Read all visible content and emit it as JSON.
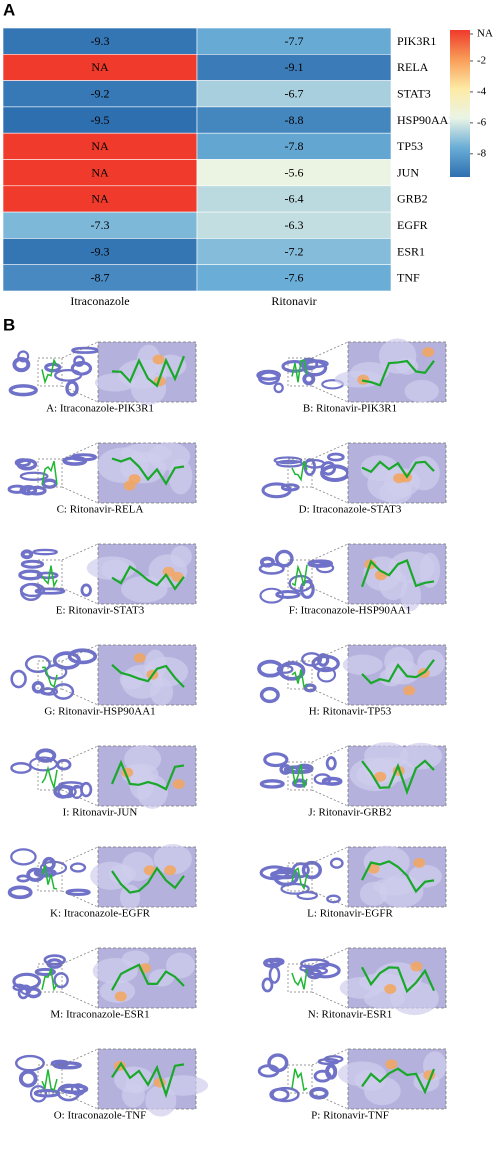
{
  "panel_a_label": "A",
  "chart_data": {
    "type": "heatmap",
    "categories": [
      "PIK3R1",
      "RELA",
      "STAT3",
      "HSP90AA1",
      "TP53",
      "JUN",
      "GRB2",
      "EGFR",
      "ESR1",
      "TNF"
    ],
    "series": [
      {
        "name": "Itraconazole",
        "values": [
          -9.3,
          null,
          -9.2,
          -9.5,
          null,
          null,
          null,
          -7.3,
          -9.3,
          -8.7
        ],
        "value_labels": [
          "-9.3",
          "NA",
          "-9.2",
          "-9.5",
          "NA",
          "NA",
          "NA",
          "-7.3",
          "-9.3",
          "-8.7"
        ]
      },
      {
        "name": "Ritonavir",
        "values": [
          -7.7,
          -9.1,
          -6.7,
          -8.8,
          -7.8,
          -5.6,
          -6.4,
          -6.3,
          -7.2,
          -7.6
        ]
      }
    ],
    "zlim": [
      -9.5,
      0
    ],
    "zticks": [
      {
        "value": 0,
        "label": "NA"
      },
      -2,
      -4,
      -6,
      -8
    ],
    "colormap": [
      "#2e6fb0",
      "#6aadd6",
      "#eaf4e6",
      "#fdeba6",
      "#f99d58",
      "#ee3a2c"
    ],
    "na_color": "#f03b2c"
  },
  "panel_b": {
    "label": "B",
    "panels": [
      {
        "caption": "A: Itraconazole-PIK3R1"
      },
      {
        "caption": "B: Ritonavir-PIK3R1"
      },
      {
        "caption": "C: Ritonavir-RELA"
      },
      {
        "caption": "D: Itraconazole-STAT3"
      },
      {
        "caption": "E: Ritonavir-STAT3"
      },
      {
        "caption": "F: Itraconazole-HSP90AA1"
      },
      {
        "caption": "G: Ritonavir-HSP90AA1"
      },
      {
        "caption": "H: Ritonavir-TP53"
      },
      {
        "caption": "I: Ritonavir-JUN"
      },
      {
        "caption": "J: Ritonavir-GRB2"
      },
      {
        "caption": "K: Itraconazole-EGFR"
      },
      {
        "caption": "L: Ritonavir-EGFR"
      },
      {
        "caption": "M: Itraconazole-ESR1"
      },
      {
        "caption": "N: Ritonavir-ESR1"
      },
      {
        "caption": "O: Itraconazole-TNF"
      },
      {
        "caption": "P: Ritonavir-TNF"
      }
    ]
  }
}
